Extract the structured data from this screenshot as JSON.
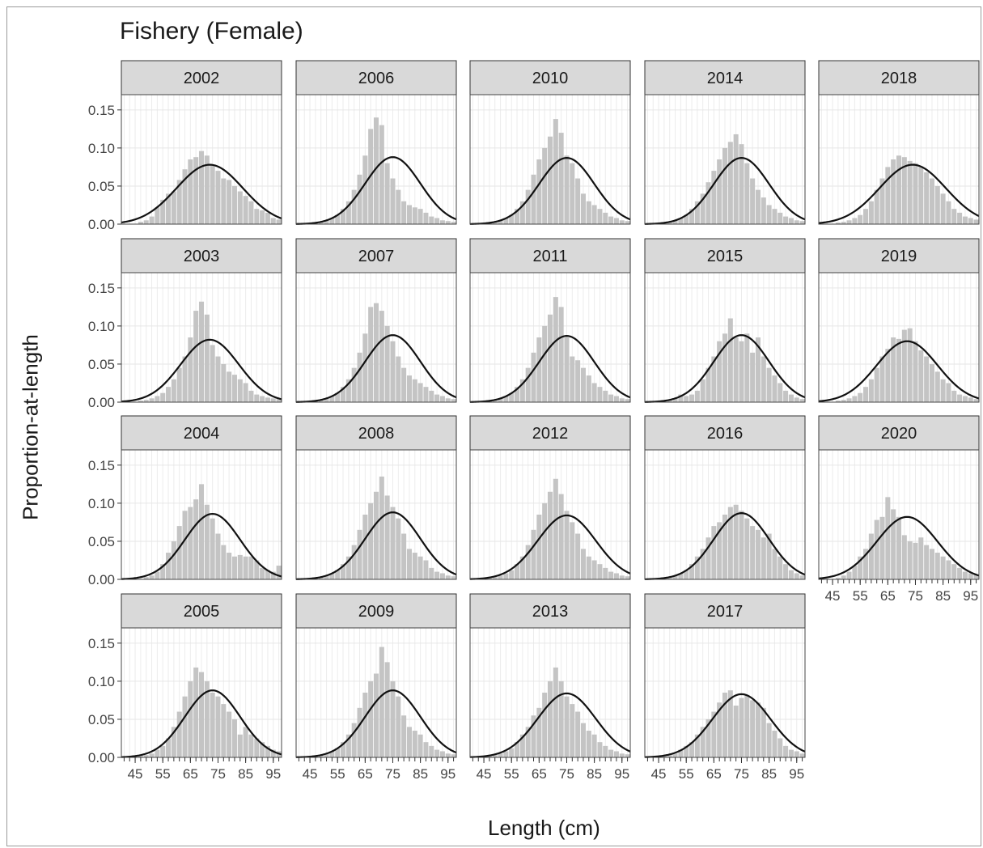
{
  "chart_data": {
    "type": "bar",
    "title": "Fishery (Female)",
    "xlabel": "Length (cm)",
    "ylabel": "Proportion-at-length",
    "xlim": [
      40,
      98
    ],
    "ylim": [
      0,
      0.17
    ],
    "x_ticks": [
      45,
      55,
      65,
      75,
      85,
      95
    ],
    "y_ticks": [
      0.0,
      0.05,
      0.1,
      0.15
    ],
    "y_tick_labels": [
      "0.00",
      "0.05",
      "0.10",
      "0.15"
    ],
    "grid": true,
    "bin_centers": [
      41,
      43,
      45,
      47,
      49,
      51,
      53,
      55,
      57,
      59,
      61,
      63,
      65,
      67,
      69,
      71,
      73,
      75,
      77,
      79,
      81,
      83,
      85,
      87,
      89,
      91,
      93,
      95,
      97
    ],
    "panels": [
      {
        "year": "2002",
        "observed": [
          0,
          0,
          0,
          0.003,
          0.005,
          0.01,
          0.022,
          0.032,
          0.04,
          0.043,
          0.058,
          0.072,
          0.085,
          0.088,
          0.096,
          0.09,
          0.078,
          0.07,
          0.06,
          0.058,
          0.05,
          0.043,
          0.037,
          0.03,
          0.02,
          0.018,
          0.015,
          0.008,
          0.006
        ],
        "fit_mu": 72,
        "fit_sigma": 12,
        "fit_peak": 0.078
      },
      {
        "year": "2003",
        "observed": [
          0,
          0,
          0,
          0.002,
          0.003,
          0.005,
          0.008,
          0.012,
          0.02,
          0.03,
          0.045,
          0.06,
          0.085,
          0.12,
          0.132,
          0.115,
          0.075,
          0.06,
          0.05,
          0.04,
          0.036,
          0.03,
          0.025,
          0.015,
          0.01,
          0.008,
          0.006,
          0.005,
          0.004
        ],
        "fit_mu": 72,
        "fit_sigma": 10.5,
        "fit_peak": 0.082
      },
      {
        "year": "2004",
        "observed": [
          0,
          0,
          0,
          0,
          0.003,
          0.005,
          0.01,
          0.02,
          0.035,
          0.05,
          0.07,
          0.09,
          0.095,
          0.105,
          0.125,
          0.098,
          0.08,
          0.06,
          0.045,
          0.035,
          0.03,
          0.032,
          0.03,
          0.03,
          0.025,
          0.015,
          0.012,
          0.01,
          0.018
        ],
        "fit_mu": 73,
        "fit_sigma": 10,
        "fit_peak": 0.086
      },
      {
        "year": "2005",
        "observed": [
          0,
          0,
          0,
          0.002,
          0.003,
          0.005,
          0.01,
          0.015,
          0.025,
          0.04,
          0.06,
          0.08,
          0.1,
          0.118,
          0.112,
          0.1,
          0.085,
          0.08,
          0.07,
          0.06,
          0.05,
          0.03,
          0.04,
          0.03,
          0.025,
          0.02,
          0.015,
          0.01,
          0.008
        ],
        "fit_mu": 73,
        "fit_sigma": 10,
        "fit_peak": 0.088
      },
      {
        "year": "2006",
        "observed": [
          0,
          0,
          0,
          0.002,
          0.003,
          0.005,
          0.008,
          0.012,
          0.02,
          0.03,
          0.045,
          0.065,
          0.09,
          0.125,
          0.14,
          0.13,
          0.08,
          0.06,
          0.045,
          0.03,
          0.025,
          0.022,
          0.02,
          0.015,
          0.01,
          0.008,
          0.005,
          0.004,
          0.003
        ],
        "fit_mu": 75,
        "fit_sigma": 10,
        "fit_peak": 0.088
      },
      {
        "year": "2007",
        "observed": [
          0,
          0,
          0,
          0.002,
          0.003,
          0.005,
          0.008,
          0.012,
          0.02,
          0.03,
          0.045,
          0.065,
          0.09,
          0.125,
          0.13,
          0.12,
          0.1,
          0.08,
          0.06,
          0.045,
          0.035,
          0.03,
          0.025,
          0.02,
          0.015,
          0.01,
          0.008,
          0.005,
          0.004
        ],
        "fit_mu": 75,
        "fit_sigma": 10,
        "fit_peak": 0.088
      },
      {
        "year": "2008",
        "observed": [
          0,
          0,
          0,
          0.002,
          0.003,
          0.005,
          0.008,
          0.012,
          0.02,
          0.03,
          0.045,
          0.065,
          0.085,
          0.1,
          0.115,
          0.135,
          0.11,
          0.095,
          0.08,
          0.06,
          0.04,
          0.035,
          0.03,
          0.025,
          0.015,
          0.01,
          0.008,
          0.005,
          0.004
        ],
        "fit_mu": 75,
        "fit_sigma": 10,
        "fit_peak": 0.088
      },
      {
        "year": "2009",
        "observed": [
          0,
          0,
          0,
          0.002,
          0.003,
          0.005,
          0.008,
          0.012,
          0.02,
          0.03,
          0.045,
          0.065,
          0.085,
          0.1,
          0.11,
          0.145,
          0.125,
          0.1,
          0.08,
          0.055,
          0.04,
          0.035,
          0.03,
          0.02,
          0.015,
          0.01,
          0.008,
          0.005,
          0.004
        ],
        "fit_mu": 75,
        "fit_sigma": 10,
        "fit_peak": 0.088
      },
      {
        "year": "2010",
        "observed": [
          0,
          0,
          0,
          0.002,
          0.003,
          0.005,
          0.008,
          0.012,
          0.02,
          0.03,
          0.045,
          0.065,
          0.085,
          0.1,
          0.115,
          0.138,
          0.12,
          0.09,
          0.08,
          0.06,
          0.04,
          0.03,
          0.025,
          0.02,
          0.015,
          0.01,
          0.008,
          0.005,
          0.004
        ],
        "fit_mu": 75,
        "fit_sigma": 10,
        "fit_peak": 0.087
      },
      {
        "year": "2011",
        "observed": [
          0,
          0,
          0,
          0.002,
          0.003,
          0.005,
          0.008,
          0.012,
          0.02,
          0.03,
          0.045,
          0.065,
          0.085,
          0.1,
          0.115,
          0.138,
          0.125,
          0.085,
          0.06,
          0.055,
          0.045,
          0.035,
          0.025,
          0.02,
          0.015,
          0.01,
          0.008,
          0.005,
          0.004
        ],
        "fit_mu": 75,
        "fit_sigma": 10,
        "fit_peak": 0.087
      },
      {
        "year": "2012",
        "observed": [
          0,
          0,
          0,
          0.002,
          0.003,
          0.005,
          0.008,
          0.012,
          0.02,
          0.03,
          0.045,
          0.065,
          0.085,
          0.1,
          0.115,
          0.132,
          0.112,
          0.09,
          0.075,
          0.06,
          0.04,
          0.03,
          0.025,
          0.02,
          0.015,
          0.01,
          0.008,
          0.005,
          0.004
        ],
        "fit_mu": 75,
        "fit_sigma": 10.5,
        "fit_peak": 0.084
      },
      {
        "year": "2013",
        "observed": [
          0,
          0,
          0,
          0.002,
          0.003,
          0.005,
          0.008,
          0.012,
          0.02,
          0.03,
          0.04,
          0.055,
          0.065,
          0.085,
          0.1,
          0.118,
          0.1,
          0.08,
          0.07,
          0.06,
          0.045,
          0.035,
          0.03,
          0.02,
          0.015,
          0.01,
          0.008,
          0.005,
          0.004
        ],
        "fit_mu": 75,
        "fit_sigma": 10.5,
        "fit_peak": 0.084
      },
      {
        "year": "2014",
        "observed": [
          0,
          0,
          0,
          0.002,
          0.003,
          0.005,
          0.008,
          0.012,
          0.02,
          0.03,
          0.04,
          0.055,
          0.07,
          0.085,
          0.1,
          0.108,
          0.118,
          0.105,
          0.08,
          0.06,
          0.045,
          0.035,
          0.025,
          0.02,
          0.015,
          0.01,
          0.008,
          0.005,
          0.004
        ],
        "fit_mu": 75,
        "fit_sigma": 10,
        "fit_peak": 0.087
      },
      {
        "year": "2015",
        "observed": [
          0,
          0,
          0,
          0.002,
          0.003,
          0.005,
          0.01,
          0.008,
          0.01,
          0.015,
          0.03,
          0.045,
          0.06,
          0.08,
          0.09,
          0.11,
          0.085,
          0.08,
          0.09,
          0.065,
          0.085,
          0.06,
          0.045,
          0.035,
          0.025,
          0.015,
          0.01,
          0.006,
          0.004
        ],
        "fit_mu": 75,
        "fit_sigma": 10,
        "fit_peak": 0.088
      },
      {
        "year": "2016",
        "observed": [
          0,
          0,
          0,
          0.002,
          0.003,
          0.005,
          0.008,
          0.012,
          0.02,
          0.03,
          0.04,
          0.055,
          0.07,
          0.075,
          0.085,
          0.095,
          0.098,
          0.09,
          0.08,
          0.07,
          0.065,
          0.055,
          0.06,
          0.04,
          0.03,
          0.02,
          0.012,
          0.008,
          0.005
        ],
        "fit_mu": 75,
        "fit_sigma": 10,
        "fit_peak": 0.087
      },
      {
        "year": "2017",
        "observed": [
          0,
          0,
          0,
          0.002,
          0.003,
          0.005,
          0.01,
          0.015,
          0.02,
          0.03,
          0.04,
          0.05,
          0.06,
          0.072,
          0.085,
          0.088,
          0.068,
          0.078,
          0.082,
          0.075,
          0.072,
          0.065,
          0.045,
          0.035,
          0.025,
          0.015,
          0.01,
          0.008,
          0.005
        ],
        "fit_mu": 75,
        "fit_sigma": 10.5,
        "fit_peak": 0.083
      },
      {
        "year": "2018",
        "observed": [
          0,
          0,
          0,
          0.002,
          0.003,
          0.005,
          0.008,
          0.012,
          0.02,
          0.03,
          0.045,
          0.06,
          0.075,
          0.085,
          0.09,
          0.088,
          0.083,
          0.08,
          0.075,
          0.068,
          0.06,
          0.05,
          0.04,
          0.03,
          0.02,
          0.015,
          0.01,
          0.008,
          0.006
        ],
        "fit_mu": 74,
        "fit_sigma": 12,
        "fit_peak": 0.078
      },
      {
        "year": "2019",
        "observed": [
          0,
          0,
          0,
          0.002,
          0.003,
          0.005,
          0.008,
          0.012,
          0.02,
          0.03,
          0.045,
          0.06,
          0.07,
          0.085,
          0.083,
          0.095,
          0.097,
          0.08,
          0.068,
          0.06,
          0.05,
          0.04,
          0.03,
          0.025,
          0.015,
          0.01,
          0.008,
          0.006,
          0.004
        ],
        "fit_mu": 72,
        "fit_sigma": 11,
        "fit_peak": 0.08
      },
      {
        "year": "2020",
        "observed": [
          0,
          0,
          0,
          0.002,
          0.005,
          0.01,
          0.018,
          0.03,
          0.04,
          0.06,
          0.078,
          0.082,
          0.108,
          0.092,
          0.082,
          0.058,
          0.05,
          0.048,
          0.055,
          0.045,
          0.04,
          0.035,
          0.03,
          0.025,
          0.02,
          0.015,
          0.01,
          0.008,
          0.006
        ],
        "fit_mu": 72,
        "fit_sigma": 11,
        "fit_peak": 0.082
      }
    ]
  }
}
